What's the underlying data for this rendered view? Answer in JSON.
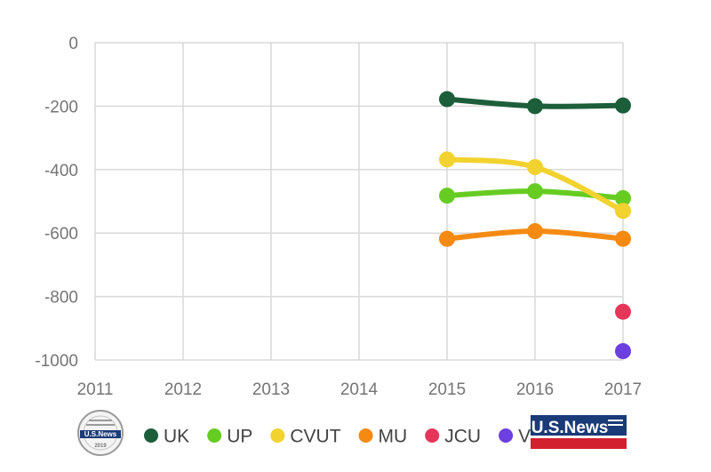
{
  "chart_data": {
    "type": "line",
    "title": "",
    "xlabel": "",
    "ylabel": "",
    "x": [
      "2011",
      "2012",
      "2013",
      "2014",
      "2015",
      "2016",
      "2017"
    ],
    "y_ticks": [
      "0",
      "-200",
      "-400",
      "-600",
      "-800",
      "-1000"
    ],
    "ylim": [
      -1000,
      0
    ],
    "grid": true,
    "legend_position": "bottom",
    "series": [
      {
        "name": "UK",
        "color": "#1d5e3a",
        "values": [
          null,
          null,
          null,
          null,
          -178,
          -200,
          -198
        ]
      },
      {
        "name": "UP",
        "color": "#66cc22",
        "values": [
          null,
          null,
          null,
          null,
          -482,
          -468,
          -490
        ]
      },
      {
        "name": "CVUT",
        "color": "#f2d22e",
        "values": [
          null,
          null,
          null,
          null,
          -368,
          -392,
          -530
        ]
      },
      {
        "name": "MU",
        "color": "#f58a12",
        "values": [
          null,
          null,
          null,
          null,
          -618,
          -594,
          -618
        ]
      },
      {
        "name": "JCU",
        "color": "#e5365a",
        "values": [
          null,
          null,
          null,
          null,
          null,
          null,
          -848
        ]
      },
      {
        "name": "VUT",
        "color": "#6b3fe0",
        "values": [
          null,
          null,
          null,
          null,
          null,
          null,
          -972
        ]
      }
    ]
  },
  "logos": {
    "badge_text": "U.S.News",
    "badge_year": "2019",
    "brand_text": "U.S.News"
  }
}
